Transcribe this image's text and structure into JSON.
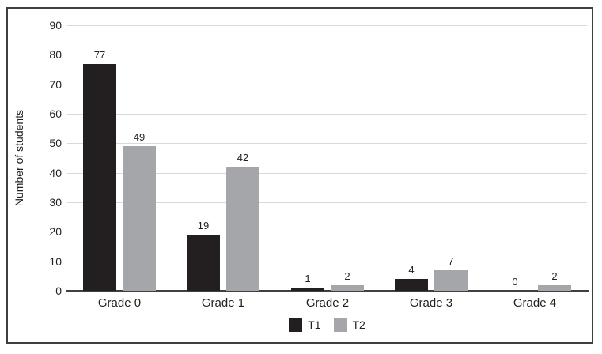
{
  "chart_data": {
    "type": "bar",
    "title": "",
    "xlabel": "",
    "ylabel": "Number of students",
    "categories": [
      "Grade 0",
      "Grade 1",
      "Grade 2",
      "Grade 3",
      "Grade 4"
    ],
    "series": [
      {
        "name": "T1",
        "color": "#231f20",
        "values": [
          77,
          19,
          1,
          4,
          0
        ]
      },
      {
        "name": "T2",
        "color": "#a4a6a9",
        "values": [
          49,
          42,
          2,
          7,
          2
        ]
      }
    ],
    "ylim": [
      0,
      90
    ],
    "yticks": [
      0,
      10,
      20,
      30,
      40,
      50,
      60,
      70,
      80,
      90
    ],
    "grid": "horizontal",
    "bar_value_labels": true,
    "legend_position": "bottom-center"
  },
  "colors": {
    "background": "#ffffff",
    "frame_border": "#3f4041",
    "axis_line": "#3f4041",
    "gridline": "#d9d9d9",
    "text": "#231f20",
    "t1": "#231f20",
    "t2": "#a4a6a9"
  }
}
